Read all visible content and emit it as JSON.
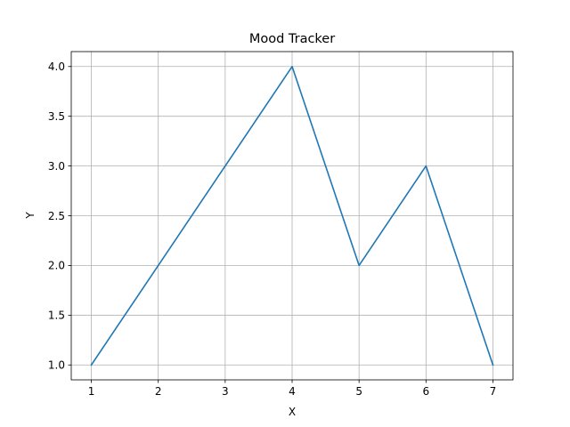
{
  "chart_data": {
    "type": "line",
    "title": "Mood Tracker",
    "xlabel": "X",
    "ylabel": "Y",
    "x": [
      1,
      2,
      3,
      4,
      5,
      6,
      7
    ],
    "series": [
      {
        "values": [
          1.0,
          2.0,
          3.0,
          4.0,
          2.0,
          3.0,
          1.0
        ],
        "color": "#1f77b4"
      }
    ],
    "xlim": [
      0.7,
      7.3
    ],
    "ylim": [
      0.85,
      4.15
    ],
    "xticks": [
      1,
      2,
      3,
      4,
      5,
      6,
      7
    ],
    "xtick_labels": [
      "1",
      "2",
      "3",
      "4",
      "5",
      "6",
      "7"
    ],
    "yticks": [
      1.0,
      1.5,
      2.0,
      2.5,
      3.0,
      3.5,
      4.0
    ],
    "ytick_labels": [
      "1.0",
      "1.5",
      "2.0",
      "2.5",
      "3.0",
      "3.5",
      "4.0"
    ],
    "grid": true,
    "legend": "none"
  }
}
